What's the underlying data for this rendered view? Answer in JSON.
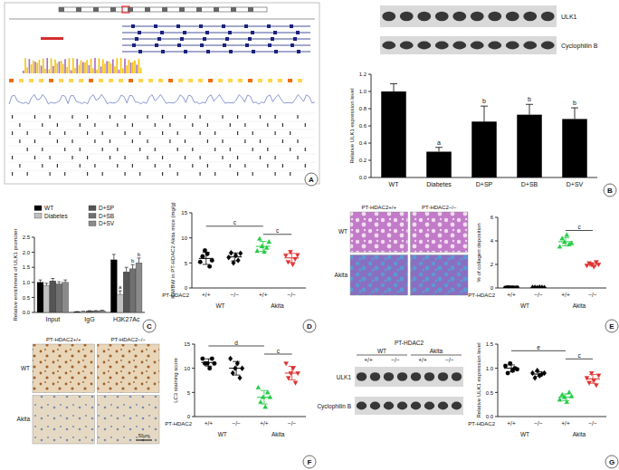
{
  "chart_data": [
    {
      "type": "bar",
      "panel_label": "B",
      "y_label": "Relative ULK1 expression level",
      "categories": [
        "WT",
        "Diabetes",
        "D+SP",
        "D+SB",
        "D+SV"
      ],
      "values": [
        1.0,
        0.3,
        0.65,
        0.73,
        0.68
      ],
      "errors": [
        0.09,
        0.05,
        0.18,
        0.12,
        0.13
      ],
      "letters": [
        null,
        "a",
        "b",
        "b",
        "b"
      ],
      "color": "#000000",
      "ylim": [
        0,
        1.2
      ],
      "yticks": [
        {
          "value": 0,
          "label": "0.0"
        },
        0.2,
        0.4,
        0.6,
        0.8,
        {
          "value": 1,
          "label": "1.0"
        },
        1.2
      ]
    },
    {
      "type": "bar",
      "panel_label": "C",
      "y_label": "Relative enrichment of ULK1 promoter",
      "categories": [
        "Input",
        "IgG",
        "H3K27Ac"
      ],
      "series": [
        {
          "name": "WT",
          "color": "#000000",
          "values": [
            1.0,
            0.02,
            1.75
          ],
          "errors": [
            0.08,
            0.01,
            0.18
          ]
        },
        {
          "name": "Diabetes",
          "color": "#c0c0c0",
          "values": [
            0.9,
            0.03,
            0.6
          ],
          "errors": [
            0.07,
            0.01,
            0.12
          ],
          "letters": [
            null,
            null,
            "a"
          ]
        },
        {
          "name": "D+SP",
          "color": "#555555",
          "values": [
            1.05,
            0.05,
            1.35
          ],
          "errors": [
            0.08,
            0.01,
            0.15
          ]
        },
        {
          "name": "D+SB",
          "color": "#707070",
          "values": [
            0.95,
            0.05,
            1.45
          ],
          "errors": [
            0.07,
            0.01,
            0.14
          ],
          "letters": [
            null,
            null,
            "b"
          ]
        },
        {
          "name": "D+SV",
          "color": "#8a8a8a",
          "values": [
            1.0,
            0.06,
            1.65
          ],
          "errors": [
            0.08,
            0.01,
            0.16
          ],
          "letters": [
            null,
            null,
            "b"
          ]
        }
      ],
      "legend": "top",
      "ylim": [
        0,
        2.5
      ],
      "yticks": [
        {
          "value": 0,
          "label": "0.0"
        },
        0.5,
        {
          "value": 1,
          "label": "1.0"
        },
        1.5,
        {
          "value": 2,
          "label": "2.0"
        },
        2.5
      ]
    },
    {
      "type": "dot",
      "panel_label": "D",
      "y_label": "KW/BW in PT-HDAC2 Akita mice (mg/g)",
      "x_label": "PT-HDAC2",
      "categories": [
        "+/+",
        "−/−",
        "+/+",
        "−/−"
      ],
      "category_groups": [
        "WT",
        "Akita"
      ],
      "points": [
        [
          5.2,
          6.3,
          7.5,
          6.8,
          4.3,
          5.5
        ],
        [
          6.1,
          7.0,
          5.0,
          6.5,
          5.5,
          6.9
        ],
        [
          7.4,
          9.8,
          8.3,
          7.2,
          8.0,
          9.2
        ],
        [
          6.5,
          5.2,
          7.2,
          4.7,
          5.8,
          6.6
        ]
      ],
      "values": [
        5.9,
        6.2,
        8.3,
        6.0
      ],
      "errors": [
        1.2,
        0.8,
        1.0,
        0.9
      ],
      "colors": [
        "#000000",
        "#000000",
        "#22cc44",
        "#e03030"
      ],
      "markers": [
        "circle",
        "diamond",
        "triangle",
        "triangle-down"
      ],
      "significance": [
        {
          "text": "c",
          "from": 0,
          "to": 2
        },
        {
          "text": "c",
          "from": 2,
          "to": 3
        }
      ],
      "ylim": [
        0,
        15
      ],
      "yticks": [
        0,
        5,
        10,
        15
      ]
    },
    {
      "type": "dot",
      "panel_label": "E",
      "y_label": "% of collagen deposition",
      "x_label": "PT-HDAC2",
      "categories": [
        "+/+",
        "−/−",
        "+/+",
        "−/−"
      ],
      "category_groups": [
        "WT",
        "Akita"
      ],
      "points": [
        [
          0.02,
          0.05,
          0.03,
          0.04,
          0.02,
          0.03
        ],
        [
          0.03,
          0.04,
          0.02,
          0.05,
          0.03,
          0.02
        ],
        [
          3.5,
          4.2,
          3.9,
          4.5,
          3.7,
          3.8
        ],
        [
          1.9,
          2.1,
          2.0,
          1.8,
          2.2,
          2.0
        ]
      ],
      "values": [
        0.03,
        0.03,
        3.93,
        2.0
      ],
      "errors": [
        0.01,
        0.01,
        0.35,
        0.14
      ],
      "colors": [
        "#000000",
        "#000000",
        "#22cc44",
        "#e03030"
      ],
      "markers": [
        "circle",
        "diamond",
        "triangle",
        "triangle-down"
      ],
      "significance": [
        {
          "text": "c",
          "from": 2,
          "to": 3
        }
      ],
      "ylim": [
        0,
        6
      ],
      "yticks": [
        0,
        2,
        4,
        6
      ]
    },
    {
      "type": "dot",
      "panel_label": "F",
      "y_label": "LC3 staining score",
      "x_label": "PT-HDAC2",
      "categories": [
        "+/+",
        "−/−",
        "+/+",
        "−/−"
      ],
      "category_groups": [
        "WT",
        "Akita"
      ],
      "points": [
        [
          12,
          11,
          11,
          10,
          12,
          11
        ],
        [
          12,
          9,
          10,
          11,
          8,
          10
        ],
        [
          6,
          3,
          4,
          2,
          5,
          4
        ],
        [
          11,
          8,
          9,
          10,
          7,
          9
        ]
      ],
      "values": [
        11.2,
        10,
        4,
        9
      ],
      "errors": [
        0.75,
        1.4,
        1.4,
        1.4
      ],
      "colors": [
        "#000000",
        "#000000",
        "#22cc44",
        "#e03030"
      ],
      "markers": [
        "circle",
        "diamond",
        "triangle",
        "triangle-down"
      ],
      "significance": [
        {
          "text": "d",
          "from": 0,
          "to": 2
        },
        {
          "text": "c",
          "from": 2,
          "to": 3
        }
      ],
      "ylim": [
        0,
        15
      ],
      "yticks": [
        0,
        5,
        10,
        15
      ]
    },
    {
      "type": "dot",
      "panel_label": "G",
      "y_label": "Relative ULK1 expression level",
      "x_label": "PT-HDAC2",
      "categories": [
        "+/+",
        "−/−",
        "+/+",
        "−/−"
      ],
      "category_groups": [
        "WT",
        "Akita"
      ],
      "points": [
        [
          1.05,
          0.9,
          1.1,
          0.95,
          1.0,
          0.98
        ],
        [
          0.9,
          0.8,
          0.95,
          0.85,
          0.88,
          0.9
        ],
        [
          0.35,
          0.45,
          0.4,
          0.3,
          0.5,
          0.42
        ],
        [
          0.8,
          0.7,
          0.9,
          0.75,
          0.65,
          0.85
        ]
      ],
      "values": [
        1.0,
        0.88,
        0.4,
        0.78
      ],
      "errors": [
        0.07,
        0.05,
        0.07,
        0.09
      ],
      "colors": [
        "#000000",
        "#000000",
        "#22cc44",
        "#e03030"
      ],
      "markers": [
        "circle",
        "diamond",
        "triangle",
        "triangle-down"
      ],
      "significance": [
        {
          "text": "e",
          "from": 0,
          "to": 2
        },
        {
          "text": "c",
          "from": 2,
          "to": 3
        }
      ],
      "ylim": [
        0,
        1.5
      ],
      "yticks": [
        {
          "value": 0,
          "label": "0.0"
        },
        0.5,
        {
          "value": 1,
          "label": "1.0"
        },
        1.5
      ]
    }
  ],
  "figure": {
    "panel_a": {
      "panel_label": "A"
    },
    "blot_b": {
      "labels": [
        "ULK1",
        "Cyclophilin B"
      ]
    },
    "images_e": {
      "columns": [
        "PT-HDAC2+/+",
        "PT-HDAC2−/−"
      ],
      "rows": [
        "WT",
        "Akita"
      ]
    },
    "images_f": {
      "columns": [
        "PT-HDAC2+/+",
        "PT-HDAC2−/−"
      ],
      "rows": [
        "WT",
        "Akita"
      ],
      "scale_bar": "50μm"
    },
    "blot_g": {
      "header": "PT-HDAC2",
      "groups": [
        "WT",
        "Akita"
      ],
      "lanes": [
        "+/+",
        "−/−",
        "+/+",
        "−/−"
      ],
      "labels": [
        "ULK1",
        "Cyclophilin B"
      ]
    }
  }
}
